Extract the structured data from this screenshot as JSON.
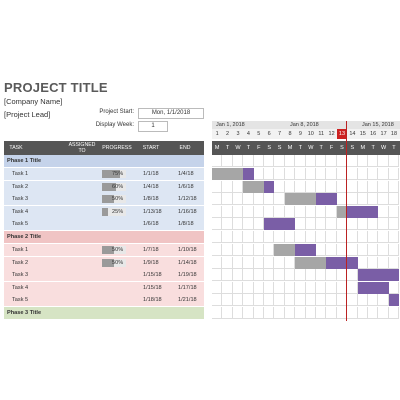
{
  "title": "PROJECT TITLE",
  "company": "[Company Name]",
  "lead": "[Project Lead]",
  "project_start_label": "Project Start:",
  "project_start_value": "Mon, 1/1/2018",
  "display_week_label": "Display Week:",
  "display_week_value": "1",
  "weeks": [
    "Jan 1, 2018",
    "Jan 8, 2018",
    "Jan 15, 2018"
  ],
  "day_numbers": [
    "1",
    "2",
    "3",
    "4",
    "5",
    "6",
    "7",
    "8",
    "9",
    "10",
    "11",
    "12",
    "13",
    "14",
    "15",
    "16",
    "17",
    "18"
  ],
  "day_letters": [
    "M",
    "T",
    "W",
    "T",
    "F",
    "S",
    "S",
    "M",
    "T",
    "W",
    "T",
    "F",
    "S",
    "S",
    "M",
    "T",
    "W",
    "T"
  ],
  "columns": {
    "task": "TASK",
    "assigned": "ASSIGNED TO",
    "progress": "PROGRESS",
    "start": "START",
    "end": "END"
  },
  "phases": [
    {
      "title": "Phase 1 Title",
      "color": "#c5d3ea",
      "row_color": "#dde6f3",
      "tasks": [
        {
          "name": "Task 1",
          "progress": "75%",
          "progress_value": 0.75,
          "start": "1/1/18",
          "end": "1/4/18"
        },
        {
          "name": "Task 2",
          "progress": "60%",
          "progress_value": 0.6,
          "start": "1/4/18",
          "end": "1/6/18"
        },
        {
          "name": "Task 3",
          "progress": "50%",
          "progress_value": 0.5,
          "start": "1/8/18",
          "end": "1/12/18"
        },
        {
          "name": "Task 4",
          "progress": "25%",
          "progress_value": 0.25,
          "start": "1/13/18",
          "end": "1/16/18"
        },
        {
          "name": "Task 5",
          "progress": "",
          "progress_value": 0,
          "start": "1/6/18",
          "end": "1/8/18"
        }
      ]
    },
    {
      "title": "Phase 2 Title",
      "color": "#f0c4c4",
      "row_color": "#f9dede",
      "tasks": [
        {
          "name": "Task 1",
          "progress": "50%",
          "progress_value": 0.5,
          "start": "1/7/18",
          "end": "1/10/18"
        },
        {
          "name": "Task 2",
          "progress": "50%",
          "progress_value": 0.5,
          "start": "1/9/18",
          "end": "1/14/18"
        },
        {
          "name": "Task 3",
          "progress": "",
          "progress_value": 0,
          "start": "1/15/18",
          "end": "1/19/18"
        },
        {
          "name": "Task 4",
          "progress": "",
          "progress_value": 0,
          "start": "1/15/18",
          "end": "1/17/18"
        },
        {
          "name": "Task 5",
          "progress": "",
          "progress_value": 0,
          "start": "1/18/18",
          "end": "1/21/18"
        }
      ]
    },
    {
      "title": "Phase 3 Title",
      "color": "#d6e4c4",
      "row_color": "#e8f0dd",
      "tasks": []
    }
  ],
  "colors": {
    "header_bg": "#555555",
    "bar_done": "#a6a6a6",
    "bar_remaining": "#7a5ea6",
    "today": "#c22222"
  }
}
